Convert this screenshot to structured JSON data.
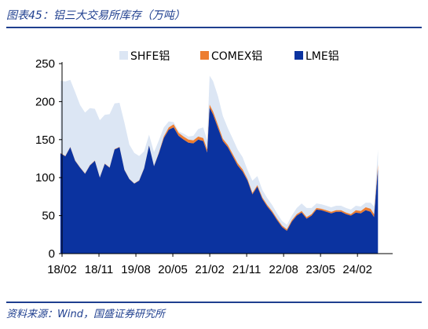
{
  "title": "图表45：铝三大交易所库存（万吨）",
  "source": "资料来源：Wind，国盛证券研究所",
  "colors": {
    "SHFE": "#dce6f4",
    "COMEX": "#ed7d31",
    "LME": "#0b33a0",
    "accent": "#1f3f8f"
  },
  "chart_data": {
    "type": "area",
    "stacked": true,
    "ylim": [
      0,
      250
    ],
    "yticks": [
      0,
      50,
      100,
      150,
      200,
      250
    ],
    "xlim": [
      2018.083,
      2024.75
    ],
    "xticks": [
      {
        "t": 2018.083,
        "label": "18/02"
      },
      {
        "t": 2018.833,
        "label": "18/11"
      },
      {
        "t": 2019.583,
        "label": "19/08"
      },
      {
        "t": 2020.333,
        "label": "20/05"
      },
      {
        "t": 2021.083,
        "label": "21/02"
      },
      {
        "t": 2021.833,
        "label": "21/11"
      },
      {
        "t": 2022.583,
        "label": "22/08"
      },
      {
        "t": 2023.333,
        "label": "23/05"
      },
      {
        "t": 2024.083,
        "label": "24/02"
      }
    ],
    "legend_position": "top",
    "x": [
      2018.05,
      2018.15,
      2018.25,
      2018.35,
      2018.45,
      2018.55,
      2018.65,
      2018.75,
      2018.85,
      2018.95,
      2019.05,
      2019.15,
      2019.25,
      2019.35,
      2019.45,
      2019.55,
      2019.65,
      2019.75,
      2019.85,
      2019.95,
      2020.05,
      2020.15,
      2020.25,
      2020.35,
      2020.45,
      2020.55,
      2020.65,
      2020.75,
      2020.85,
      2020.95,
      2021.03,
      2021.08,
      2021.15,
      2021.25,
      2021.35,
      2021.45,
      2021.55,
      2021.65,
      2021.75,
      2021.85,
      2021.95,
      2022.05,
      2022.15,
      2022.25,
      2022.35,
      2022.45,
      2022.55,
      2022.65,
      2022.75,
      2022.85,
      2022.95,
      2023.05,
      2023.15,
      2023.25,
      2023.35,
      2023.45,
      2023.55,
      2023.65,
      2023.75,
      2023.85,
      2023.95,
      2024.05,
      2024.15,
      2024.25,
      2024.35,
      2024.42,
      2024.5
    ],
    "series": [
      {
        "name": "LME",
        "values": [
          132,
          128,
          140,
          122,
          113,
          105,
          116,
          122,
          100,
          118,
          113,
          137,
          140,
          110,
          98,
          92,
          96,
          112,
          142,
          115,
          132,
          152,
          163,
          166,
          155,
          150,
          146,
          145,
          150,
          148,
          133,
          192,
          183,
          165,
          148,
          140,
          128,
          116,
          108,
          96,
          78,
          88,
          72,
          62,
          54,
          44,
          35,
          30,
          42,
          50,
          54,
          46,
          50,
          58,
          57,
          55,
          53,
          55,
          55,
          52,
          50,
          54,
          53,
          57,
          55,
          48,
          112
        ]
      },
      {
        "name": "COMEX",
        "values": [
          0.5,
          0.5,
          0.5,
          0.5,
          0.5,
          0.5,
          0.5,
          0.5,
          0.5,
          0.5,
          0.5,
          0.5,
          0.5,
          0.5,
          0.5,
          0.5,
          0.5,
          0.5,
          0.5,
          0.5,
          1,
          2,
          3,
          4,
          4,
          4,
          4,
          4,
          4,
          4,
          4,
          4,
          4,
          4,
          3,
          3,
          3,
          3,
          3,
          2,
          2,
          2,
          2,
          2,
          2,
          2,
          2,
          2,
          2,
          2,
          2,
          2,
          2,
          2,
          2,
          2,
          2,
          2,
          2,
          2,
          2,
          3,
          3,
          4,
          4,
          4,
          5
        ]
      },
      {
        "name": "SHFE",
        "values": [
          95,
          98,
          88,
          90,
          82,
          80,
          75,
          68,
          75,
          64,
          70,
          60,
          58,
          62,
          45,
          40,
          32,
          22,
          14,
          18,
          16,
          12,
          8,
          3,
          2,
          4,
          4,
          6,
          10,
          14,
          12,
          38,
          40,
          38,
          30,
          22,
          20,
          18,
          16,
          12,
          16,
          12,
          10,
          9,
          8,
          7,
          6,
          6,
          6,
          8,
          10,
          12,
          8,
          6,
          6,
          6,
          6,
          6,
          6,
          6,
          6,
          6,
          6,
          6,
          8,
          10,
          20
        ]
      }
    ]
  },
  "legend": [
    {
      "key": "SHFE",
      "label": "SHFE铝"
    },
    {
      "key": "COMEX",
      "label": "COMEX铝"
    },
    {
      "key": "LME",
      "label": "LME铝"
    }
  ]
}
